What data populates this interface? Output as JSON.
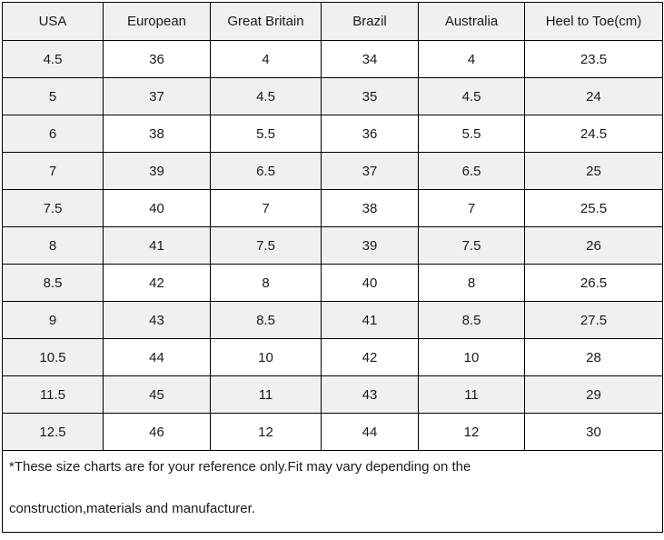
{
  "table": {
    "headers": [
      "USA",
      "European",
      "Great Britain",
      "Brazil",
      "Australia",
      "Heel to Toe(cm)"
    ],
    "rows": [
      [
        "4.5",
        "36",
        "4",
        "34",
        "4",
        "23.5"
      ],
      [
        "5",
        "37",
        "4.5",
        "35",
        "4.5",
        "24"
      ],
      [
        "6",
        "38",
        "5.5",
        "36",
        "5.5",
        "24.5"
      ],
      [
        "7",
        "39",
        "6.5",
        "37",
        "6.5",
        "25"
      ],
      [
        "7.5",
        "40",
        "7",
        "38",
        "7",
        "25.5"
      ],
      [
        "8",
        "41",
        "7.5",
        "39",
        "7.5",
        "26"
      ],
      [
        "8.5",
        "42",
        "8",
        "40",
        "8",
        "26.5"
      ],
      [
        "9",
        "43",
        "8.5",
        "41",
        "8.5",
        "27.5"
      ],
      [
        "10.5",
        "44",
        "10",
        "42",
        "10",
        "28"
      ],
      [
        "11.5",
        "45",
        "11",
        "43",
        "11",
        "29"
      ],
      [
        "12.5",
        "46",
        "12",
        "44",
        "12",
        "30"
      ]
    ],
    "footnote": {
      "line1": "*These size charts are for your reference only.Fit may vary depending on the",
      "line2": "construction,materials and manufacturer."
    }
  },
  "colors": {
    "shaded_cell": "#f0f0f0",
    "white_cell": "#ffffff",
    "border": "#000000",
    "text": "#1a1a1a"
  }
}
